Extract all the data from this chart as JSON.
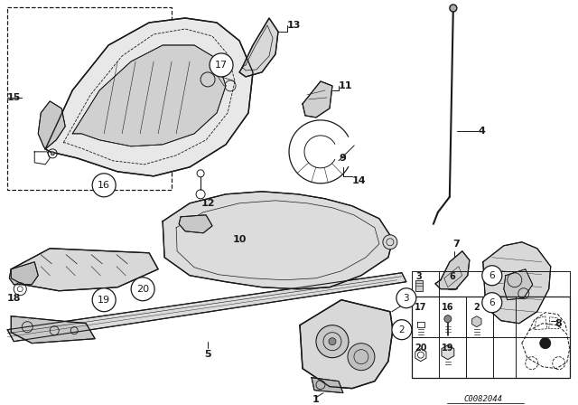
{
  "bg_color": "#f0f0f0",
  "line_color": "#1a1a1a",
  "diagram_code": "C0082044",
  "fig_width": 6.4,
  "fig_height": 4.48,
  "dpi": 100
}
